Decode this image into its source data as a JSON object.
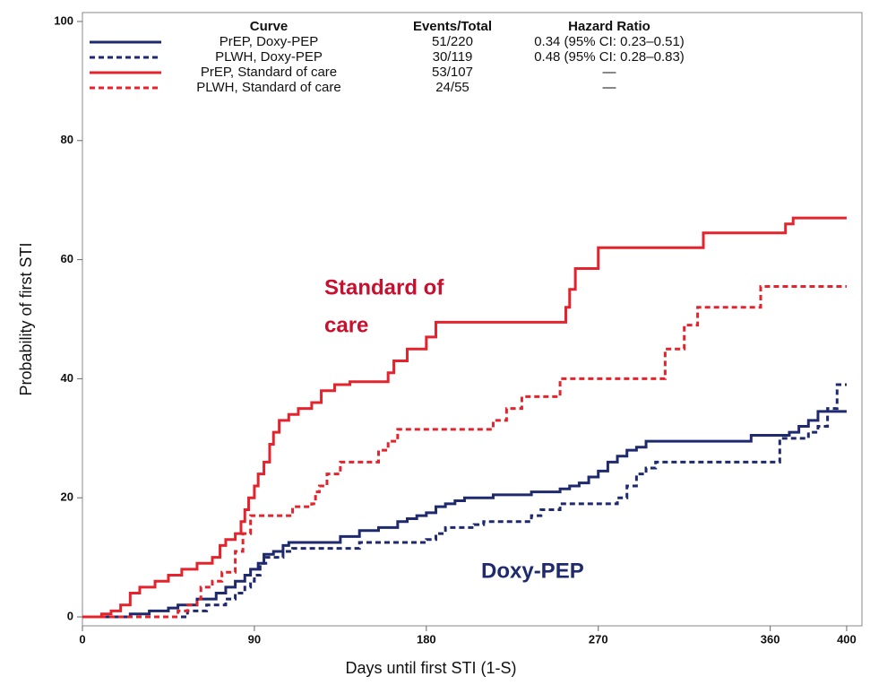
{
  "chart_data": {
    "type": "step",
    "xlabel": "Days until first STI (1-S)",
    "ylabel": "Probability of first STI",
    "xlim": [
      0,
      408
    ],
    "ylim": [
      -1.5,
      101.5
    ],
    "xticks": [
      0,
      90,
      180,
      270,
      360,
      400
    ],
    "yticks": [
      0,
      20,
      40,
      60,
      80,
      100
    ],
    "legend_headers": [
      "Curve",
      "Events/Total",
      "Hazard Ratio"
    ],
    "series": [
      {
        "name": "PrEP, Doxy-PEP",
        "color": "#1f2a6e",
        "dashed": false,
        "events_total": "51/220",
        "hazard_ratio": "0.34 (95% CI: 0.23–0.51)",
        "x": [
          0,
          20,
          25,
          35,
          45,
          50,
          60,
          70,
          75,
          80,
          85,
          88,
          92,
          95,
          100,
          105,
          108,
          130,
          135,
          145,
          155,
          165,
          170,
          175,
          180,
          185,
          190,
          195,
          200,
          215,
          235,
          250,
          255,
          260,
          265,
          270,
          275,
          280,
          285,
          290,
          295,
          345,
          350,
          370,
          375,
          380,
          385,
          400
        ],
        "values": [
          0,
          0,
          0.5,
          1,
          1.5,
          2,
          3,
          4,
          5,
          6,
          7,
          8,
          9,
          10.5,
          11,
          12,
          12.5,
          12.5,
          13.5,
          14.5,
          15,
          16,
          16.5,
          17,
          17.5,
          18.5,
          19,
          19.5,
          20,
          20.5,
          21,
          21.5,
          22,
          22.5,
          23.5,
          24.5,
          26,
          27,
          28,
          28.5,
          29.5,
          29.5,
          30.5,
          31,
          32,
          33,
          34.5,
          34.5
        ]
      },
      {
        "name": "PLWH, Doxy-PEP",
        "color": "#1f2a6e",
        "dashed": true,
        "events_total": "30/119",
        "hazard_ratio": "0.48 (95% CI: 0.28–0.83)",
        "x": [
          0,
          45,
          55,
          65,
          75,
          80,
          85,
          88,
          90,
          93,
          96,
          105,
          110,
          140,
          145,
          180,
          185,
          190,
          205,
          210,
          235,
          240,
          250,
          280,
          285,
          290,
          295,
          300,
          360,
          365,
          380,
          385,
          390,
          395,
          400
        ],
        "values": [
          0,
          0,
          1,
          2,
          3,
          4,
          5,
          6,
          7,
          9,
          10,
          11,
          11.5,
          11.5,
          12.5,
          13,
          14,
          15,
          15.5,
          16,
          17,
          18,
          19,
          20,
          22,
          24,
          25,
          26,
          26,
          30,
          31,
          32,
          35,
          39,
          39
        ]
      },
      {
        "name": "PrEP, Standard of care",
        "color": "#e5232d",
        "dashed": false,
        "events_total": "53/107",
        "hazard_ratio": "—",
        "x": [
          0,
          10,
          15,
          20,
          25,
          30,
          38,
          45,
          52,
          60,
          68,
          72,
          75,
          80,
          83,
          85,
          87,
          90,
          92,
          95,
          98,
          100,
          103,
          108,
          113,
          120,
          125,
          132,
          140,
          155,
          160,
          163,
          170,
          180,
          185,
          250,
          253,
          255,
          258,
          265,
          270,
          320,
          325,
          365,
          368,
          372,
          400
        ],
        "values": [
          0,
          0.5,
          1,
          2,
          4,
          5,
          6,
          7,
          8,
          9,
          10,
          12,
          13,
          14,
          16,
          18,
          20,
          22,
          24,
          26,
          29,
          31,
          33,
          34,
          35,
          36,
          38,
          39,
          39.5,
          39.5,
          41,
          43,
          45,
          47,
          49.5,
          49.5,
          52,
          55,
          58.5,
          58.5,
          62,
          62,
          64.5,
          64.5,
          66,
          67,
          67
        ]
      },
      {
        "name": "PLWH, Standard of care",
        "color": "#e5232d",
        "dashed": true,
        "events_total": "24/55",
        "hazard_ratio": "—",
        "x": [
          0,
          45,
          50,
          55,
          60,
          62,
          68,
          73,
          80,
          84,
          88,
          100,
          110,
          120,
          122,
          124,
          128,
          135,
          150,
          155,
          160,
          165,
          210,
          215,
          222,
          230,
          245,
          250,
          300,
          305,
          315,
          322,
          350,
          355,
          400
        ],
        "values": [
          0,
          0,
          1,
          2,
          3,
          5,
          6,
          7.5,
          11,
          14,
          17,
          17,
          18.5,
          19,
          21,
          22,
          24,
          26,
          26,
          28,
          29.5,
          31.5,
          31.5,
          33,
          35,
          37,
          37,
          40,
          40,
          45,
          49,
          52,
          52,
          55.5,
          55.5
        ]
      }
    ],
    "annotations": [
      {
        "lines": [
          "Standard of",
          "care"
        ],
        "color": "#c8102e"
      },
      {
        "lines": [
          "Doxy-PEP"
        ],
        "color": "#1f2a6e"
      }
    ]
  }
}
